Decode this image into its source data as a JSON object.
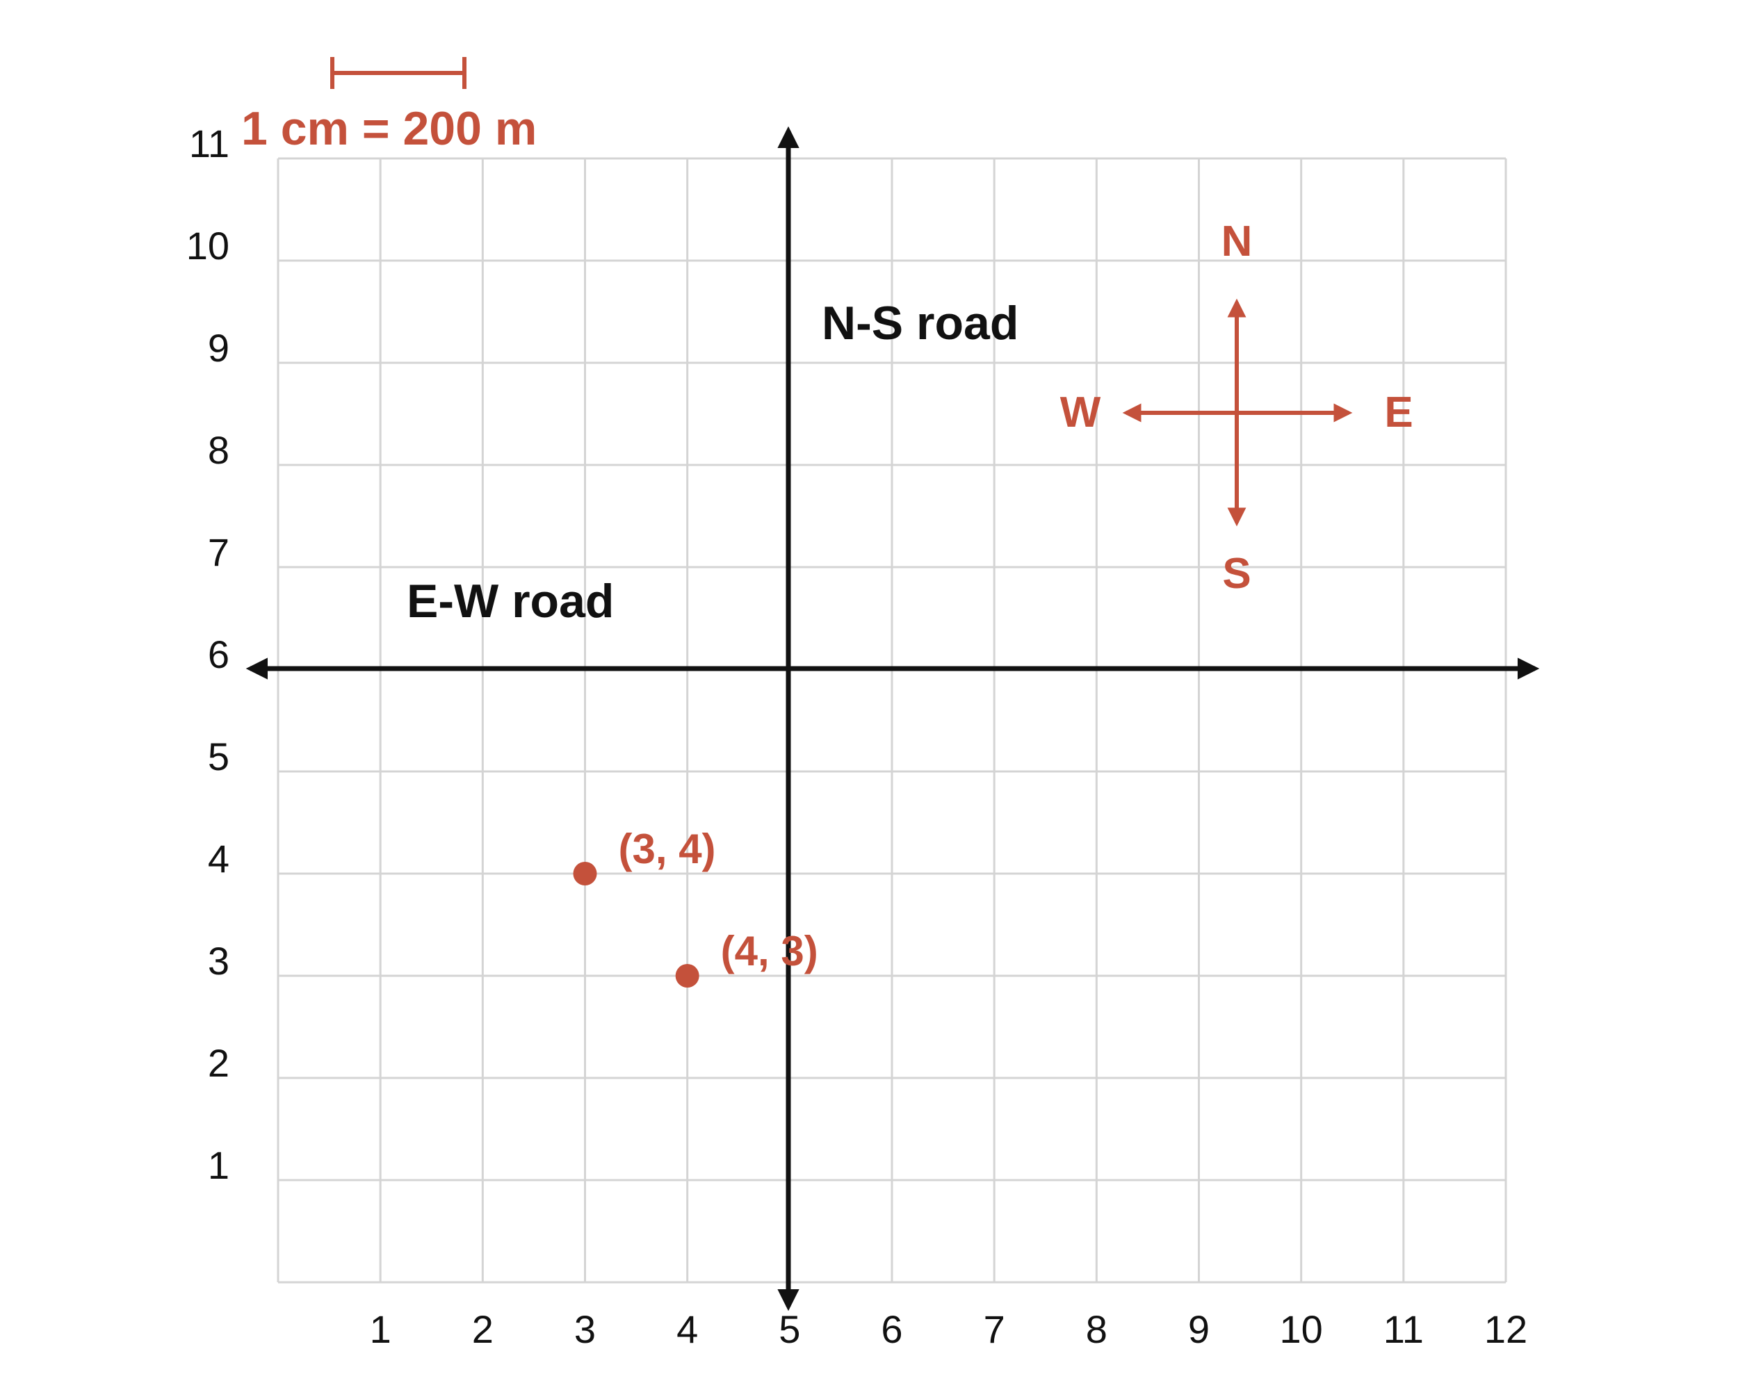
{
  "colors": {
    "accent": "#c4513b",
    "axis": "#111111",
    "grid": "#d4d4d4",
    "background": "#ffffff"
  },
  "scale": {
    "label": "1 cm = 200 m"
  },
  "grid": {
    "x_min": 0,
    "x_max": 12,
    "y_min": 0,
    "y_max": 11,
    "x_ticks": [
      "1",
      "2",
      "3",
      "4",
      "5",
      "6",
      "7",
      "8",
      "9",
      "10",
      "11",
      "12"
    ],
    "y_ticks": [
      "1",
      "2",
      "3",
      "4",
      "5",
      "6",
      "7",
      "8",
      "9",
      "10",
      "11"
    ]
  },
  "roads": {
    "ns": {
      "label": "N-S road",
      "x": 5
    },
    "ew": {
      "label": "E-W road",
      "y": 6
    }
  },
  "compass": {
    "n": "N",
    "s": "S",
    "e": "E",
    "w": "W"
  },
  "points": [
    {
      "x": 3,
      "y": 4,
      "label": "(3, 4)"
    },
    {
      "x": 4,
      "y": 3,
      "label": "(4, 3)"
    }
  ]
}
